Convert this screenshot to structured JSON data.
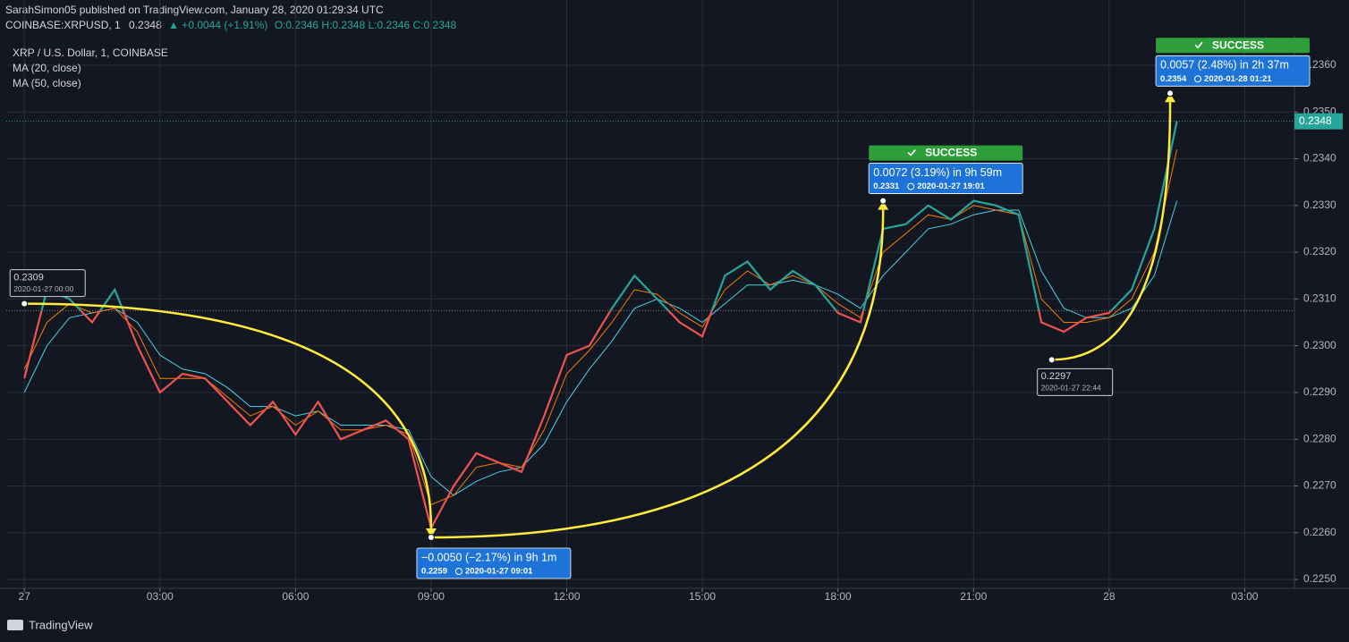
{
  "header": {
    "publisher": "SarahSimon05 published on TradingView.com, January 28, 2020 01:29:34 UTC",
    "symbol": "COINBASE:XRPUSD, 1",
    "last": "0.2348",
    "change": "▲ +0.0044 (+1.91%)",
    "ohlc": "O:0.2346 H:0.2348 L:0.2346 C:0.2348"
  },
  "footer": {
    "brand": "TradingView"
  },
  "chart_data": {
    "type": "line",
    "x": [
      0,
      0.5,
      1,
      1.5,
      2,
      2.5,
      3,
      3.5,
      4,
      4.5,
      5,
      5.5,
      6,
      6.5,
      7,
      7.5,
      8,
      8.5,
      9,
      9.5,
      10,
      10.5,
      11,
      11.5,
      12,
      12.5,
      13,
      13.5,
      14,
      14.5,
      15,
      15.5,
      16,
      16.5,
      17,
      17.5,
      18,
      18.5,
      19,
      19.5,
      20,
      20.5,
      21,
      21.5,
      22,
      22.5,
      23,
      23.5,
      24,
      24.5,
      25,
      25.5
    ],
    "series": [
      {
        "name": "XRP / U.S. Dollar, 1, COINBASE",
        "up_color": "#26a69a",
        "down_color": "#ef5350",
        "values": [
          0.2293,
          0.2312,
          0.231,
          0.2305,
          0.2312,
          0.23,
          0.229,
          0.2294,
          0.2293,
          0.2288,
          0.2283,
          0.2288,
          0.2281,
          0.2288,
          0.228,
          0.2282,
          0.2284,
          0.228,
          0.2261,
          0.227,
          0.2277,
          0.2275,
          0.2273,
          0.2285,
          0.2298,
          0.23,
          0.2308,
          0.2315,
          0.231,
          0.2305,
          0.2302,
          0.2315,
          0.2318,
          0.2312,
          0.2316,
          0.2313,
          0.2307,
          0.2305,
          0.2325,
          0.2326,
          0.233,
          0.2327,
          0.2331,
          0.233,
          0.2328,
          0.2305,
          0.2303,
          0.2306,
          0.2307,
          0.2312,
          0.2325,
          0.2348
        ]
      },
      {
        "name": "MA (20, close)",
        "color": "#f57c00",
        "values": [
          0.2295,
          0.2305,
          0.2309,
          0.2307,
          0.2308,
          0.2303,
          0.2293,
          0.2293,
          0.2293,
          0.2289,
          0.2285,
          0.2287,
          0.2283,
          0.2286,
          0.2282,
          0.2282,
          0.2283,
          0.2281,
          0.2266,
          0.2268,
          0.2274,
          0.2275,
          0.2274,
          0.2282,
          0.2294,
          0.2299,
          0.2305,
          0.2312,
          0.2311,
          0.2307,
          0.2304,
          0.2312,
          0.2316,
          0.2313,
          0.2315,
          0.2313,
          0.2309,
          0.2306,
          0.232,
          0.2324,
          0.2328,
          0.2327,
          0.233,
          0.2329,
          0.2328,
          0.231,
          0.2305,
          0.2305,
          0.2306,
          0.231,
          0.232,
          0.2342
        ]
      },
      {
        "name": "MA (50, close)",
        "color": "#4dd0e1",
        "values": [
          0.229,
          0.23,
          0.2306,
          0.2307,
          0.2308,
          0.2305,
          0.2298,
          0.2295,
          0.2294,
          0.2291,
          0.2287,
          0.2287,
          0.2285,
          0.2286,
          0.2283,
          0.2283,
          0.2283,
          0.2282,
          0.2272,
          0.2268,
          0.2271,
          0.2273,
          0.2274,
          0.2279,
          0.2288,
          0.2295,
          0.2301,
          0.2308,
          0.231,
          0.2308,
          0.2305,
          0.2309,
          0.2313,
          0.2313,
          0.2314,
          0.2313,
          0.2311,
          0.2308,
          0.2315,
          0.232,
          0.2325,
          0.2326,
          0.2328,
          0.2329,
          0.2329,
          0.2316,
          0.2308,
          0.2306,
          0.2306,
          0.2308,
          0.2315,
          0.2331
        ]
      }
    ],
    "baseline": 0.23075,
    "last_price": 0.2348,
    "xlim": [
      -0.4,
      28.1
    ],
    "ylim": [
      0.22481,
      0.23663
    ],
    "xticks": [
      {
        "value": 0,
        "label": "27"
      },
      {
        "value": 3,
        "label": "03:00"
      },
      {
        "value": 6,
        "label": "06:00"
      },
      {
        "value": 9,
        "label": "09:00"
      },
      {
        "value": 12,
        "label": "12:00"
      },
      {
        "value": 15,
        "label": "15:00"
      },
      {
        "value": 18,
        "label": "18:00"
      },
      {
        "value": 21,
        "label": "21:00"
      },
      {
        "value": 24,
        "label": "28"
      },
      {
        "value": 27,
        "label": "03:00"
      }
    ],
    "yticks": [
      {
        "value": 0.225,
        "label": "0.2250"
      },
      {
        "value": 0.226,
        "label": "0.2260"
      },
      {
        "value": 0.227,
        "label": "0.2270"
      },
      {
        "value": 0.228,
        "label": "0.2280"
      },
      {
        "value": 0.229,
        "label": "0.2290"
      },
      {
        "value": 0.23,
        "label": "0.2300"
      },
      {
        "value": 0.231,
        "label": "0.2310"
      },
      {
        "value": 0.232,
        "label": "0.2320"
      },
      {
        "value": 0.233,
        "label": "0.2330"
      },
      {
        "value": 0.234,
        "label": "0.2340"
      },
      {
        "value": 0.235,
        "label": "0.2350"
      },
      {
        "value": 0.236,
        "label": "0.2360"
      }
    ],
    "grid": true,
    "annotations": [
      {
        "x": 0,
        "y": 0.2309,
        "time": "2020-01-27 00:00"
      },
      {
        "x": 9.0,
        "y": 0.2259,
        "time": "2020-01-27 09:01",
        "change": "−0.0050 (−2.17%) in 9h 1m"
      },
      {
        "x": 19.0,
        "y": 0.2331,
        "time": "2020-01-27 19:01",
        "change": "0.0072 (3.19%) in 9h 59m",
        "status": "SUCCESS"
      },
      {
        "x": 22.73,
        "y": 0.2297,
        "time": "2020-01-27 22:44"
      },
      {
        "x": 25.35,
        "y": 0.2354,
        "time": "2020-01-28 01:21",
        "change": "0.0057 (2.48%) in 2h 37m",
        "status": "SUCCESS"
      }
    ]
  }
}
